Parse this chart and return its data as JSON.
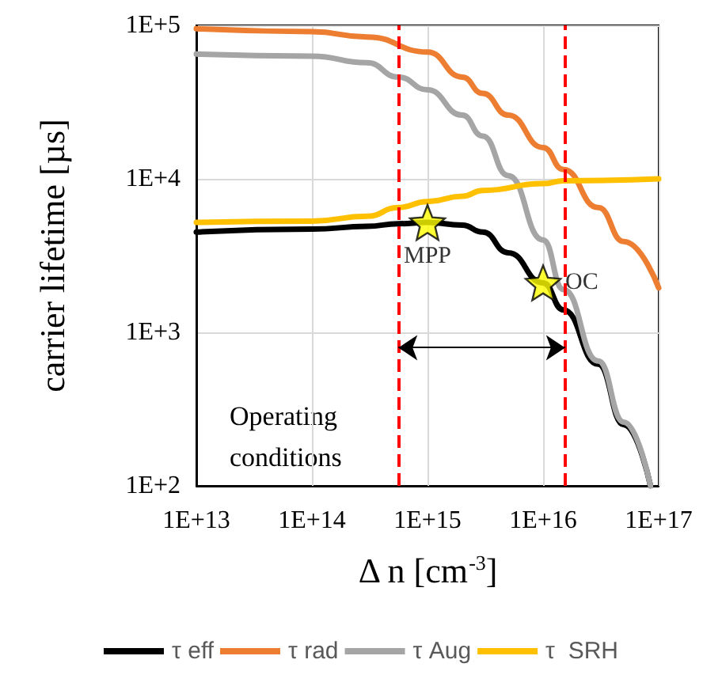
{
  "chart_data": {
    "type": "line",
    "xlabel": "Δ n [cm$^{-3}$]",
    "ylabel": "carrier lifetime [µs]",
    "log": "xy",
    "grid": true,
    "legend": "bottom",
    "xlim": [
      10000000000000.0,
      1e+17
    ],
    "ylim": [
      100,
      100000
    ],
    "xticks": [
      {
        "value": 10000000000000.0,
        "label": "1E+13"
      },
      {
        "value": 100000000000000.0,
        "label": "1E+14"
      },
      {
        "value": 1000000000000000.0,
        "label": "1E+15"
      },
      {
        "value": 1e+16,
        "label": "1E+16"
      },
      {
        "value": 1e+17,
        "label": "1E+17"
      }
    ],
    "yticks": [
      {
        "value": 100,
        "label": "1E+2"
      },
      {
        "value": 1000,
        "label": "1E+3"
      },
      {
        "value": 10000,
        "label": "1E+4"
      },
      {
        "value": 100000,
        "label": "1E+5"
      }
    ],
    "series": [
      {
        "name": "τ eff",
        "color": "#000000",
        "x": [
          10000000000000.0,
          100000000000000.0,
          300000000000000.0,
          560000000000000.0,
          1000000000000000.0,
          2000000000000000.0,
          3000000000000000.0,
          5000000000000000.0,
          1e+16,
          1.5e+16,
          3e+16,
          5e+16,
          8.5e+16
        ],
        "values": [
          4500,
          4700,
          4900,
          5100,
          5200,
          5000,
          4500,
          3300,
          2100,
          1400,
          620,
          250,
          100
        ]
      },
      {
        "name": "τ rad",
        "color": "#ed7d31",
        "x": [
          10000000000000.0,
          100000000000000.0,
          300000000000000.0,
          1000000000000000.0,
          2000000000000000.0,
          3000000000000000.0,
          5000000000000000.0,
          1e+16,
          1.5e+16,
          3e+16,
          5e+16,
          1e+17
        ],
        "values": [
          95000,
          91000,
          84000,
          67000,
          46000,
          36000,
          26000,
          16000,
          11500,
          6500,
          3900,
          1950
        ]
      },
      {
        "name": "τ Aug",
        "color": "#a5a5a5",
        "x": [
          10000000000000.0,
          100000000000000.0,
          300000000000000.0,
          560000000000000.0,
          1000000000000000.0,
          2000000000000000.0,
          3000000000000000.0,
          5000000000000000.0,
          1e+16,
          1.5e+16,
          3e+16,
          5e+16,
          8.5e+16
        ],
        "values": [
          65000,
          63000,
          57000,
          46000,
          38000,
          26000,
          19000,
          10500,
          4000,
          1900,
          650,
          260,
          100
        ]
      },
      {
        "name": "τ  SRH",
        "color": "#ffc000",
        "x": [
          10000000000000.0,
          100000000000000.0,
          300000000000000.0,
          560000000000000.0,
          1000000000000000.0,
          2000000000000000.0,
          3000000000000000.0,
          1e+16,
          1.5e+16,
          1e+17
        ],
        "values": [
          5200,
          5300,
          5700,
          6500,
          7100,
          7700,
          8400,
          9300,
          9700,
          10000
        ]
      },
      {
        "type": "scatter",
        "marker": "star",
        "color": "#ffff00",
        "x": [
          1000000000000000.0,
          1e+16
        ],
        "values": [
          5200,
          2100
        ]
      }
    ],
    "ref_lines": [
      {
        "axis": "x",
        "value": 560000000000000.0,
        "color": "#ff0000",
        "line_style": "dashed"
      },
      {
        "axis": "x",
        "value": 1.55e+16,
        "color": "#ff0000",
        "line_style": "dashed"
      }
    ],
    "annotations": [
      {
        "text": "MPP",
        "x": 1000000000000000.0,
        "y": 5200
      },
      {
        "text": "OC",
        "x": 1e+16,
        "y": 2100
      },
      "Operating conditions"
    ]
  }
}
